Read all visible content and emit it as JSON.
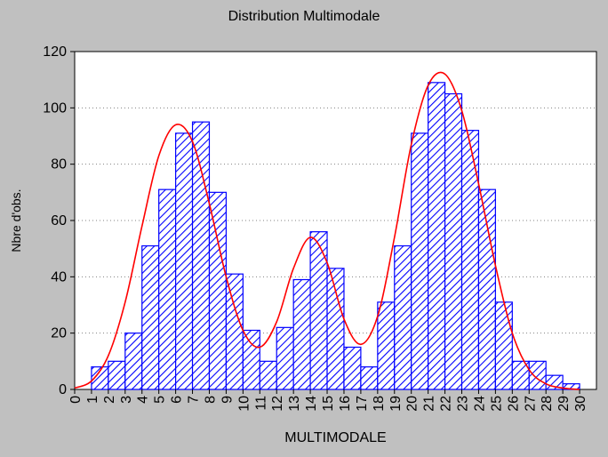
{
  "chart_data": {
    "type": "bar",
    "title": "Distribution Multimodale",
    "xlabel": "MULTIMODALE",
    "ylabel": "Nbre d'obs.",
    "ylim": [
      0,
      120
    ],
    "yticks": [
      0,
      20,
      40,
      60,
      80,
      100,
      120
    ],
    "xticks": [
      "0",
      "1",
      "2",
      "3",
      "4",
      "5",
      "6",
      "7",
      "8",
      "9",
      "10",
      "11",
      "12",
      "13",
      "14",
      "15",
      "16",
      "17",
      "18",
      "19",
      "20",
      "21",
      "22",
      "23",
      "24",
      "25",
      "26",
      "27",
      "28",
      "29",
      "30"
    ],
    "grid": true,
    "series": [
      {
        "values": [
          {
            "bin": "1-2",
            "count": 8
          },
          {
            "bin": "2-3",
            "count": 10
          },
          {
            "bin": "3-4",
            "count": 20
          },
          {
            "bin": "4-5",
            "count": 51
          },
          {
            "bin": "5-6",
            "count": 71
          },
          {
            "bin": "6-7",
            "count": 91
          },
          {
            "bin": "7-8",
            "count": 95
          },
          {
            "bin": "8-9",
            "count": 70
          },
          {
            "bin": "9-10",
            "count": 41
          },
          {
            "bin": "10-11",
            "count": 21
          },
          {
            "bin": "11-12",
            "count": 10
          },
          {
            "bin": "12-13",
            "count": 22
          },
          {
            "bin": "13-14",
            "count": 39
          },
          {
            "bin": "14-15",
            "count": 56
          },
          {
            "bin": "15-16",
            "count": 43
          },
          {
            "bin": "16-17",
            "count": 15
          },
          {
            "bin": "17-18",
            "count": 8
          },
          {
            "bin": "18-19",
            "count": 31
          },
          {
            "bin": "19-20",
            "count": 51
          },
          {
            "bin": "20-21",
            "count": 91
          },
          {
            "bin": "21-22",
            "count": 109
          },
          {
            "bin": "22-23",
            "count": 105
          },
          {
            "bin": "23-24",
            "count": 92
          },
          {
            "bin": "24-25",
            "count": 71
          },
          {
            "bin": "25-26",
            "count": 31
          },
          {
            "bin": "26-27",
            "count": 10
          },
          {
            "bin": "27-28",
            "count": 10
          },
          {
            "bin": "28-29",
            "count": 5
          },
          {
            "bin": "29-30",
            "count": 2
          }
        ]
      }
    ],
    "fitted_curve": {
      "type": "line",
      "points": [
        {
          "x": 0,
          "y": 0.5
        },
        {
          "x": 1,
          "y": 3
        },
        {
          "x": 2,
          "y": 12
        },
        {
          "x": 3,
          "y": 31
        },
        {
          "x": 4,
          "y": 58
        },
        {
          "x": 5,
          "y": 83
        },
        {
          "x": 6,
          "y": 94
        },
        {
          "x": 7,
          "y": 88
        },
        {
          "x": 8,
          "y": 66
        },
        {
          "x": 9,
          "y": 40
        },
        {
          "x": 10,
          "y": 21
        },
        {
          "x": 11,
          "y": 15
        },
        {
          "x": 12,
          "y": 24
        },
        {
          "x": 13,
          "y": 43
        },
        {
          "x": 14,
          "y": 54
        },
        {
          "x": 15,
          "y": 45
        },
        {
          "x": 16,
          "y": 25
        },
        {
          "x": 17,
          "y": 16
        },
        {
          "x": 18,
          "y": 26
        },
        {
          "x": 19,
          "y": 54
        },
        {
          "x": 20,
          "y": 87
        },
        {
          "x": 21,
          "y": 108
        },
        {
          "x": 22,
          "y": 112
        },
        {
          "x": 23,
          "y": 99
        },
        {
          "x": 24,
          "y": 73
        },
        {
          "x": 25,
          "y": 44
        },
        {
          "x": 26,
          "y": 20
        },
        {
          "x": 27,
          "y": 7
        },
        {
          "x": 28,
          "y": 2
        },
        {
          "x": 29,
          "y": 0.5
        },
        {
          "x": 30,
          "y": 0
        }
      ]
    },
    "colors": {
      "background": "#c0c0c0",
      "plot_area": "#ffffff",
      "bar_stroke": "#0000ff",
      "bar_hatch": "#0000ff",
      "curve": "#ff0000",
      "grid": "#808080"
    }
  }
}
